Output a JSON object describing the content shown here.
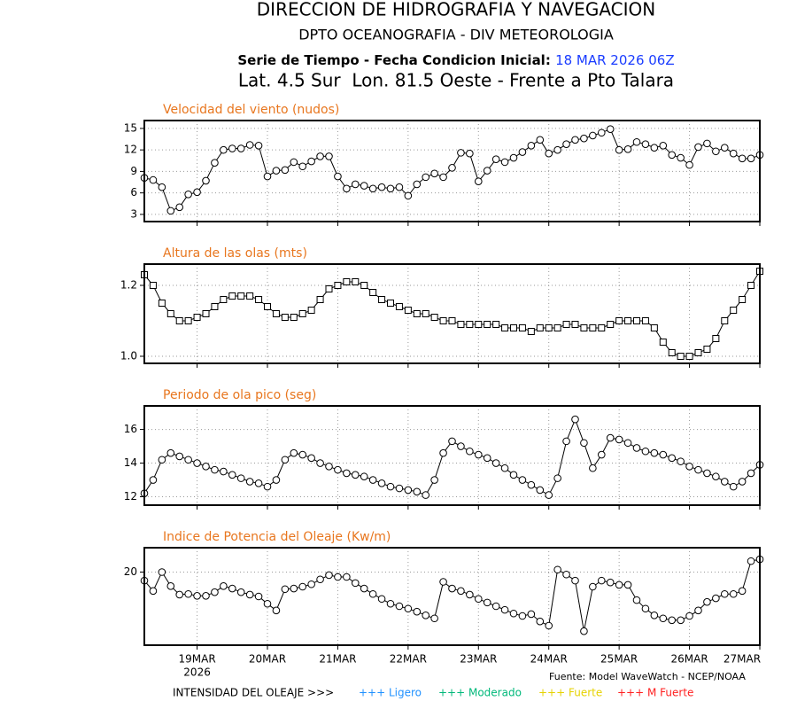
{
  "header": {
    "title": "DIRECCION DE HIDROGRAFIA Y NAVEGACION",
    "subtitle": "DPTO OCEANOGRAFIA - DIV METEOROLOGIA",
    "series_label": "Serie de Tiempo - Fecha Condicion Inicial:",
    "init_date": "18 MAR 2026 06Z",
    "location": "Lat. 4.5 Sur  Lon. 81.5 Oeste - Frente a Pto Talara"
  },
  "chart_data": [
    {
      "type": "line",
      "title": "Velocidad del viento (nudos)",
      "marker": "circle",
      "color": "#000000",
      "grid": true,
      "ylim": [
        2,
        16.1
      ],
      "yticks": [
        3,
        6,
        9,
        12,
        15
      ],
      "values": [
        8.1,
        7.8,
        6.8,
        3.5,
        4,
        5.8,
        6.1,
        7.7,
        10.2,
        12,
        12.2,
        12.2,
        12.7,
        12.6,
        8.3,
        9.1,
        9.2,
        10.3,
        9.7,
        10.4,
        11.1,
        11.1,
        8.3,
        6.6,
        7.2,
        7,
        6.6,
        6.8,
        6.6,
        6.8,
        5.6,
        7.2,
        8.2,
        8.7,
        8.2,
        9.5,
        11.6,
        11.5,
        7.6,
        9.1,
        10.7,
        10.3,
        10.9,
        11.7,
        12.6,
        13.4,
        11.5,
        12,
        12.8,
        13.4,
        13.6,
        14,
        14.4,
        14.9,
        12,
        12.1,
        13.1,
        12.8,
        12.3,
        12.6,
        11.3,
        10.9,
        9.9,
        12.4,
        12.9,
        11.8,
        12.3,
        11.5,
        10.8,
        10.8,
        11.3
      ]
    },
    {
      "type": "line",
      "title": "Altura de las olas (mts)",
      "marker": "square",
      "color": "#000000",
      "grid": true,
      "ylim": [
        0.98,
        1.26
      ],
      "yticks": [
        {
          "value": 1.0,
          "label": "1.0"
        },
        {
          "value": 1.2,
          "label": "1.2"
        }
      ],
      "values": [
        1.23,
        1.2,
        1.15,
        1.12,
        1.1,
        1.1,
        1.11,
        1.12,
        1.14,
        1.16,
        1.17,
        1.17,
        1.17,
        1.16,
        1.14,
        1.12,
        1.11,
        1.11,
        1.12,
        1.13,
        1.16,
        1.19,
        1.2,
        1.21,
        1.21,
        1.2,
        1.18,
        1.16,
        1.15,
        1.14,
        1.13,
        1.12,
        1.12,
        1.11,
        1.1,
        1.1,
        1.09,
        1.09,
        1.09,
        1.09,
        1.09,
        1.08,
        1.08,
        1.08,
        1.07,
        1.08,
        1.08,
        1.08,
        1.09,
        1.09,
        1.08,
        1.08,
        1.08,
        1.09,
        1.1,
        1.1,
        1.1,
        1.1,
        1.08,
        1.04,
        1.01,
        1.0,
        1.0,
        1.01,
        1.02,
        1.05,
        1.1,
        1.13,
        1.16,
        1.2,
        1.24
      ]
    },
    {
      "type": "line",
      "title": "Periodo de ola pico (seg)",
      "marker": "circle",
      "color": "#000000",
      "grid": true,
      "ylim": [
        11.5,
        17.4
      ],
      "yticks": [
        12,
        14,
        16
      ],
      "values": [
        12.2,
        13.0,
        14.2,
        14.6,
        14.4,
        14.2,
        14.0,
        13.8,
        13.6,
        13.5,
        13.3,
        13.1,
        12.9,
        12.8,
        12.6,
        13.0,
        14.2,
        14.6,
        14.5,
        14.3,
        14.0,
        13.8,
        13.6,
        13.4,
        13.3,
        13.2,
        13.0,
        12.8,
        12.6,
        12.5,
        12.4,
        12.3,
        12.1,
        13.0,
        14.6,
        15.3,
        15.0,
        14.7,
        14.5,
        14.3,
        14.0,
        13.7,
        13.3,
        13.0,
        12.7,
        12.4,
        12.1,
        13.1,
        15.3,
        16.6,
        15.2,
        13.7,
        14.5,
        15.5,
        15.4,
        15.2,
        14.9,
        14.7,
        14.6,
        14.5,
        14.3,
        14.1,
        13.8,
        13.6,
        13.4,
        13.2,
        12.9,
        12.6,
        12.9,
        13.4,
        13.9
      ]
    },
    {
      "type": "line",
      "title": "Indice de Potencia del Oleaje (Kw/m)",
      "marker": "circle",
      "color": "#000000",
      "grid": true,
      "ylim": [
        8,
        24
      ],
      "yticks": [
        20
      ],
      "categories": [
        null,
        null,
        null,
        null,
        null,
        null,
        "19MAR",
        null,
        null,
        null,
        null,
        null,
        null,
        null,
        "20MAR",
        null,
        null,
        null,
        null,
        null,
        null,
        null,
        "21MAR",
        null,
        null,
        null,
        null,
        null,
        null,
        null,
        "22MAR",
        null,
        null,
        null,
        null,
        null,
        null,
        null,
        "23MAR",
        null,
        null,
        null,
        null,
        null,
        null,
        null,
        "24MAR",
        null,
        null,
        null,
        null,
        null,
        null,
        null,
        "25MAR",
        null,
        null,
        null,
        null,
        null,
        null,
        null,
        "26MAR",
        null,
        null,
        null,
        null,
        null,
        null,
        null,
        "27MAR"
      ],
      "x_sublabel": "2026",
      "values": [
        18.6,
        16.9,
        20,
        17.7,
        16.3,
        16.4,
        16.1,
        16.1,
        16.7,
        17.7,
        17.3,
        16.7,
        16.3,
        16,
        14.8,
        13.7,
        17.2,
        17.3,
        17.6,
        18,
        18.8,
        19.5,
        19.2,
        19.2,
        18.2,
        17.3,
        16.4,
        15.6,
        14.8,
        14.4,
        14,
        13.5,
        12.9,
        12.4,
        18.4,
        17.3,
        16.9,
        16.3,
        15.6,
        15,
        14.4,
        13.8,
        13.2,
        12.8,
        13.1,
        11.9,
        11.2,
        20.4,
        19.6,
        18.6,
        10.3,
        17.6,
        18.6,
        18.3,
        17.9,
        17.9,
        15.4,
        14,
        12.9,
        12.4,
        12.1,
        12.1,
        12.8,
        13.7,
        15.1,
        15.7,
        16.4,
        16.4,
        16.9,
        21.8,
        22.1
      ]
    }
  ],
  "source": "Fuente: Model WaveWatch - NCEP/NOAA",
  "legend": {
    "title": "INTENSIDAD DEL OLEAJE >>>",
    "items": [
      {
        "label": "+++ Ligero",
        "color": "#1e90ff"
      },
      {
        "label": "+++ Moderado",
        "color": "#00b87a"
      },
      {
        "label": "+++ Fuerte",
        "color": "#e6d200"
      },
      {
        "label": "+++ M Fuerte",
        "color": "#ff2020"
      }
    ]
  }
}
